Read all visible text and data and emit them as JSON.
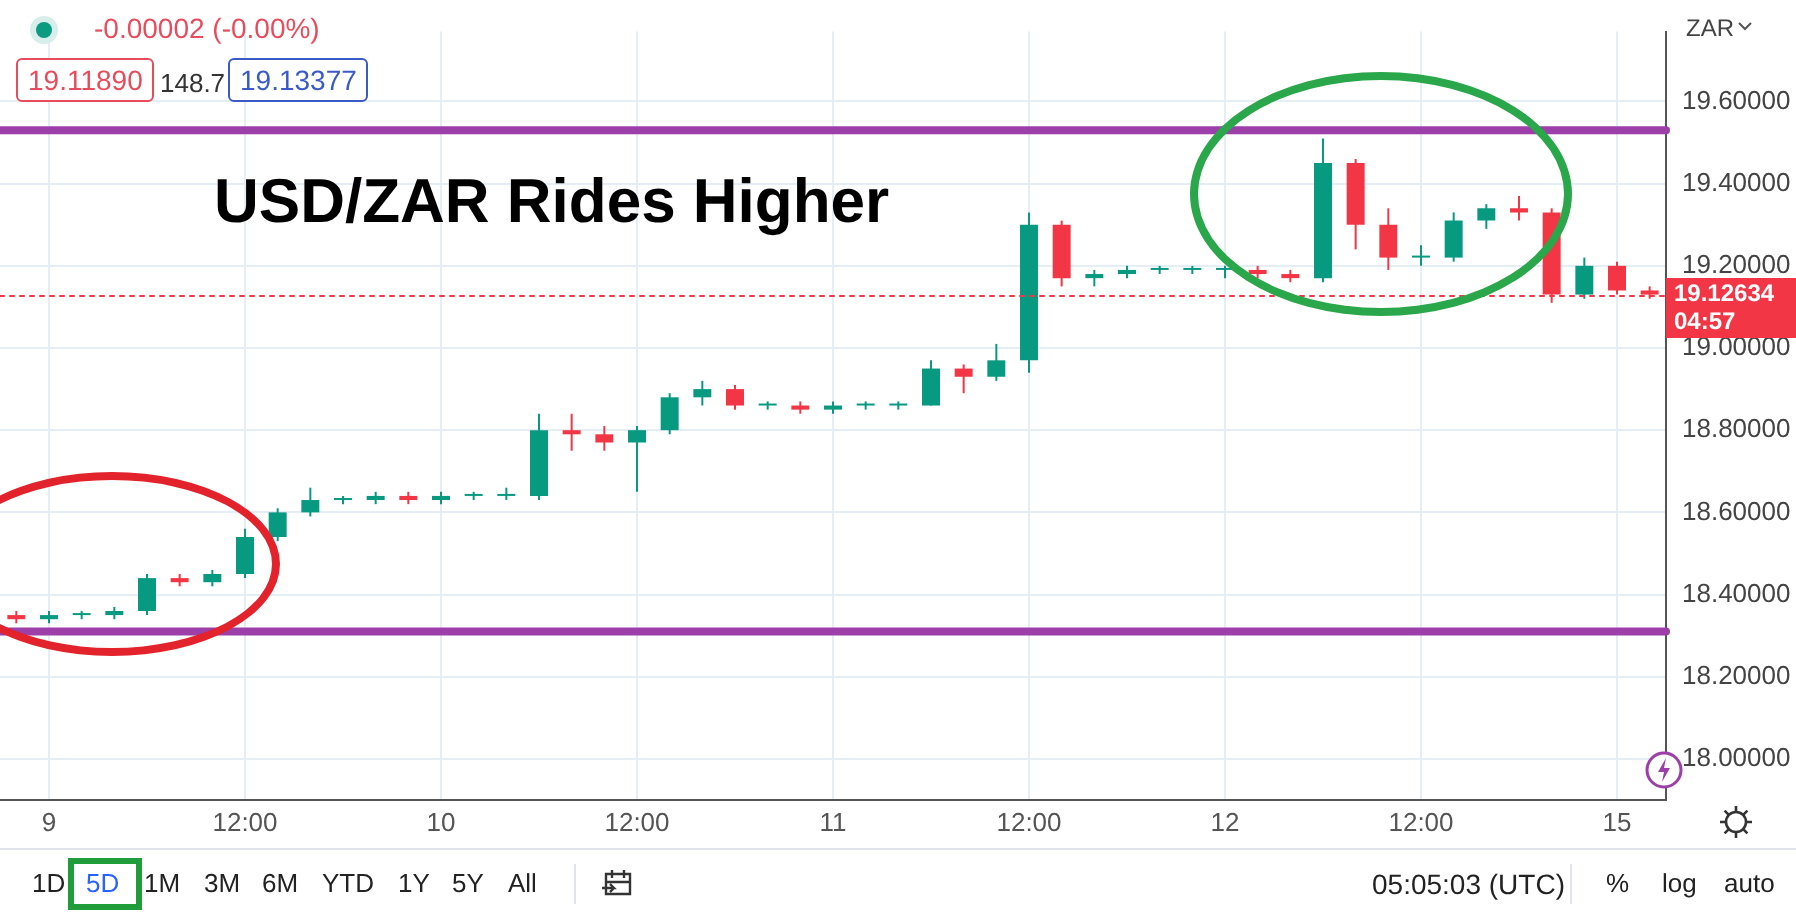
{
  "chart_data": {
    "type": "candlestick",
    "title": "USD/ZAR Rides Higher",
    "categories": [
      null,
      "9",
      null,
      null,
      null,
      null,
      null,
      "12:00",
      null,
      null,
      null,
      null,
      null,
      "10",
      null,
      null,
      null,
      null,
      null,
      "12:00",
      null,
      null,
      null,
      null,
      null,
      "11",
      null,
      null,
      null,
      null,
      null,
      "12:00",
      null,
      null,
      null,
      null,
      null,
      "12",
      null,
      null,
      null,
      null,
      null,
      "12:00",
      null,
      null,
      null,
      null,
      null,
      "15",
      null
    ],
    "ohlc": [
      [
        18.35,
        18.36,
        18.33,
        18.34
      ],
      [
        18.34,
        18.36,
        18.33,
        18.35
      ],
      [
        18.35,
        18.36,
        18.34,
        18.35
      ],
      [
        18.35,
        18.37,
        18.34,
        18.36
      ],
      [
        18.36,
        18.45,
        18.35,
        18.44
      ],
      [
        18.44,
        18.45,
        18.42,
        18.43
      ],
      [
        18.43,
        18.46,
        18.42,
        18.45
      ],
      [
        18.45,
        18.56,
        18.44,
        18.54
      ],
      [
        18.54,
        18.61,
        18.53,
        18.6
      ],
      [
        18.6,
        18.66,
        18.59,
        18.63
      ],
      [
        18.63,
        18.64,
        18.62,
        18.63
      ],
      [
        18.63,
        18.65,
        18.62,
        18.64
      ],
      [
        18.64,
        18.65,
        18.62,
        18.63
      ],
      [
        18.63,
        18.65,
        18.62,
        18.64
      ],
      [
        18.64,
        18.65,
        18.63,
        18.64
      ],
      [
        18.64,
        18.66,
        18.63,
        18.64
      ],
      [
        18.64,
        18.84,
        18.63,
        18.8
      ],
      [
        18.8,
        18.84,
        18.75,
        18.79
      ],
      [
        18.79,
        18.81,
        18.75,
        18.77
      ],
      [
        18.77,
        18.81,
        18.65,
        18.8
      ],
      [
        18.8,
        18.89,
        18.79,
        18.88
      ],
      [
        18.88,
        18.92,
        18.86,
        18.9
      ],
      [
        18.9,
        18.91,
        18.85,
        18.86
      ],
      [
        18.86,
        18.87,
        18.85,
        18.86
      ],
      [
        18.86,
        18.87,
        18.84,
        18.85
      ],
      [
        18.85,
        18.87,
        18.84,
        18.86
      ],
      [
        18.86,
        18.87,
        18.85,
        18.86
      ],
      [
        18.86,
        18.87,
        18.85,
        18.86
      ],
      [
        18.86,
        18.97,
        18.86,
        18.95
      ],
      [
        18.95,
        18.96,
        18.89,
        18.93
      ],
      [
        18.93,
        19.01,
        18.92,
        18.97
      ],
      [
        18.97,
        19.33,
        18.94,
        19.3
      ],
      [
        19.3,
        19.31,
        19.15,
        19.17
      ],
      [
        19.17,
        19.19,
        19.15,
        19.18
      ],
      [
        19.18,
        19.2,
        19.17,
        19.19
      ],
      [
        19.19,
        19.2,
        19.18,
        19.19
      ],
      [
        19.19,
        19.2,
        19.18,
        19.19
      ],
      [
        19.19,
        19.2,
        19.17,
        19.19
      ],
      [
        19.19,
        19.2,
        19.17,
        19.18
      ],
      [
        19.18,
        19.19,
        19.16,
        19.17
      ],
      [
        19.17,
        19.51,
        19.16,
        19.45
      ],
      [
        19.45,
        19.46,
        19.24,
        19.3
      ],
      [
        19.3,
        19.34,
        19.19,
        19.22
      ],
      [
        19.22,
        19.25,
        19.2,
        19.22
      ],
      [
        19.22,
        19.33,
        19.21,
        19.31
      ],
      [
        19.31,
        19.35,
        19.29,
        19.34
      ],
      [
        19.34,
        19.37,
        19.31,
        19.33
      ],
      [
        19.33,
        19.34,
        19.11,
        19.13
      ],
      [
        19.13,
        19.22,
        19.12,
        19.2
      ],
      [
        19.2,
        19.21,
        19.13,
        19.14
      ],
      [
        19.14,
        19.15,
        19.12,
        19.13
      ]
    ],
    "ylim": [
      17.9,
      19.77
    ],
    "yticks": [
      {
        "value": 18,
        "label": "18.00000"
      },
      {
        "value": 18.2,
        "label": "18.20000"
      },
      {
        "value": 18.4,
        "label": "18.40000"
      },
      {
        "value": 18.6,
        "label": "18.60000"
      },
      {
        "value": 18.8,
        "label": "18.80000"
      },
      {
        "value": 19,
        "label": "19.00000"
      },
      {
        "value": 19.2,
        "label": "19.20000"
      },
      {
        "value": 19.4,
        "label": "19.40000"
      },
      {
        "value": 19.6,
        "label": "19.60000"
      }
    ],
    "grid": true,
    "ref_lines": [
      {
        "axis": "y",
        "value": 19.53,
        "color": "#9c3fa8"
      },
      {
        "axis": "y",
        "value": 18.31,
        "color": "#9c3fa8"
      },
      {
        "axis": "y",
        "value": 19.12634,
        "label": "19.12634",
        "color": "#f23645",
        "line_style": "dotted"
      }
    ],
    "annotations": [
      "-0.00002 (-0.00%)",
      "19.11890",
      "148.7",
      "19.13377",
      "ZAR",
      "04:57",
      "05:05:03 (UTC)",
      "1D",
      "5D",
      "1M",
      "3M",
      "6M",
      "YTD",
      "1Y",
      "5Y",
      "All",
      "%",
      "log",
      "auto"
    ]
  }
}
